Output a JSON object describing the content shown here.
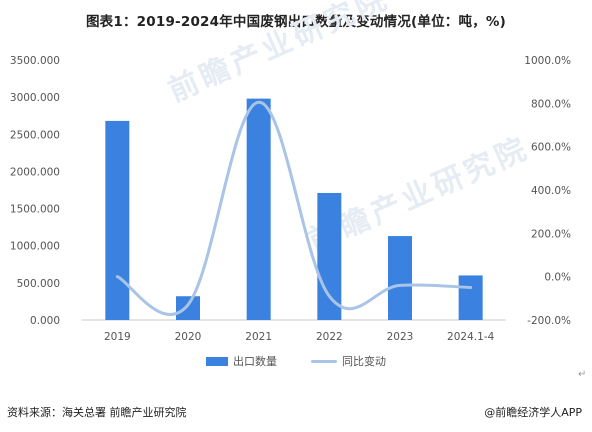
{
  "title": "图表1：2019-2024年中国废钢出口数量及变动情况(单位：吨，%)",
  "watermark": "前瞻产业研究院",
  "source_left": "资料来源：海关总署 前瞻产业研究院",
  "source_right": "@前瞻经济学人APP",
  "return_mark": "↵",
  "colors": {
    "bar": "#3b82e0",
    "line": "#a9c4e6",
    "axis": "#c8c8c8",
    "text": "#555555"
  },
  "chart_data": {
    "type": "bar",
    "categories": [
      "2019",
      "2020",
      "2021",
      "2022",
      "2023",
      "2024.1-4"
    ],
    "series": [
      {
        "name": "出口数量",
        "type": "bar",
        "axis": "left",
        "values": [
          2680,
          320,
          2980,
          1710,
          1130,
          600
        ]
      },
      {
        "name": "同比变动",
        "type": "line",
        "axis": "right",
        "values": [
          0,
          -130,
          805,
          -90,
          -40,
          -50
        ]
      }
    ],
    "y_left": {
      "ticks": [
        "0.000",
        "500.000",
        "1000.000",
        "1500.000",
        "2000.000",
        "2500.000",
        "3000.000",
        "3500.000"
      ],
      "lim": [
        0,
        3500
      ]
    },
    "y_right": {
      "ticks": [
        "-200.0%",
        "0.0%",
        "200.0%",
        "400.0%",
        "600.0%",
        "800.0%",
        "1000.0%"
      ],
      "lim": [
        -200,
        1000
      ]
    },
    "legend_position": "bottom"
  }
}
